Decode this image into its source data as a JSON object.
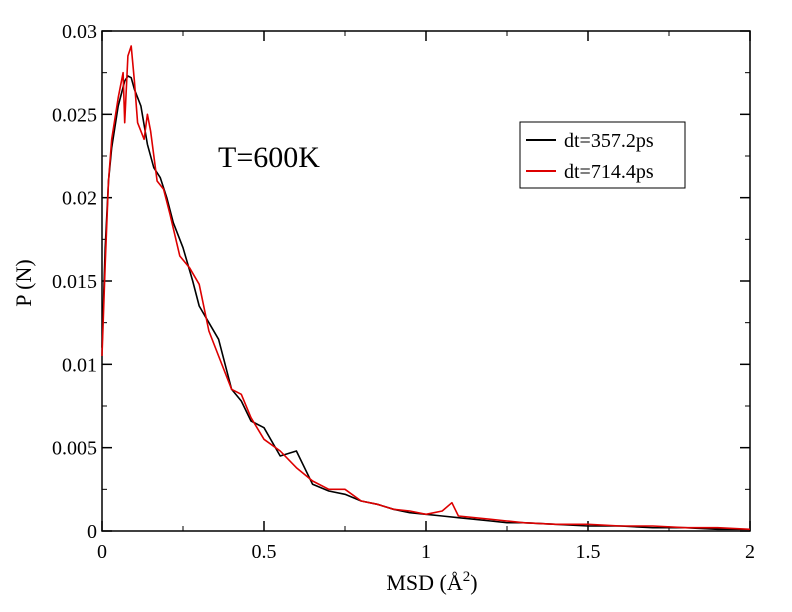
{
  "chart_data": {
    "type": "line",
    "annotation": "T=600K",
    "xlabel": "MSD (Å",
    "xlabel_superscript": "2",
    "xlabel_suffix": ")",
    "ylabel": "P (N)",
    "xlim": [
      0,
      2
    ],
    "ylim": [
      0,
      0.03
    ],
    "xticks": [
      0,
      0.5,
      1,
      1.5,
      2
    ],
    "xtick_labels": [
      "0",
      "0.5",
      "1",
      "1.5",
      "2"
    ],
    "yticks": [
      0,
      0.005,
      0.01,
      0.015,
      0.02,
      0.025,
      0.03
    ],
    "ytick_labels": [
      "0",
      "0.005",
      "0.01",
      "0.015",
      "0.02",
      "0.025",
      "0.03"
    ],
    "grid": false,
    "legend_position": "top-right",
    "series": [
      {
        "name": "dt=357.2ps",
        "color": "#000000",
        "x": [
          0.0,
          0.01,
          0.02,
          0.03,
          0.05,
          0.07,
          0.08,
          0.09,
          0.1,
          0.12,
          0.14,
          0.16,
          0.18,
          0.2,
          0.22,
          0.25,
          0.28,
          0.3,
          0.33,
          0.36,
          0.4,
          0.43,
          0.46,
          0.5,
          0.55,
          0.6,
          0.65,
          0.7,
          0.75,
          0.8,
          0.85,
          0.9,
          0.95,
          1.0,
          1.05,
          1.1,
          1.15,
          1.2,
          1.25,
          1.3,
          1.4,
          1.5,
          1.6,
          1.7,
          1.8,
          1.9,
          2.0
        ],
        "y": [
          0.011,
          0.017,
          0.021,
          0.023,
          0.0255,
          0.027,
          0.0273,
          0.0272,
          0.0265,
          0.0255,
          0.0232,
          0.0218,
          0.0212,
          0.02,
          0.0185,
          0.017,
          0.015,
          0.0135,
          0.0125,
          0.0115,
          0.0085,
          0.0078,
          0.0066,
          0.0062,
          0.0045,
          0.0048,
          0.0028,
          0.0024,
          0.0022,
          0.0018,
          0.0016,
          0.0013,
          0.0011,
          0.001,
          0.0009,
          0.0008,
          0.0007,
          0.0006,
          0.0005,
          0.0005,
          0.0004,
          0.0003,
          0.0003,
          0.0002,
          0.0002,
          0.0001,
          0.0001
        ]
      },
      {
        "name": "dt=714.4ps",
        "color": "#dd0000",
        "x": [
          0.0,
          0.01,
          0.02,
          0.03,
          0.05,
          0.065,
          0.07,
          0.08,
          0.09,
          0.1,
          0.11,
          0.13,
          0.14,
          0.15,
          0.17,
          0.19,
          0.21,
          0.24,
          0.27,
          0.3,
          0.33,
          0.36,
          0.4,
          0.43,
          0.46,
          0.5,
          0.55,
          0.6,
          0.65,
          0.7,
          0.75,
          0.8,
          0.85,
          0.9,
          0.95,
          1.0,
          1.05,
          1.08,
          1.1,
          1.15,
          1.2,
          1.25,
          1.3,
          1.4,
          1.5,
          1.6,
          1.7,
          1.8,
          1.9,
          2.0
        ],
        "y": [
          0.0105,
          0.016,
          0.021,
          0.0235,
          0.026,
          0.0275,
          0.0245,
          0.0285,
          0.0291,
          0.027,
          0.0245,
          0.0235,
          0.025,
          0.024,
          0.021,
          0.0205,
          0.019,
          0.0165,
          0.0158,
          0.0148,
          0.012,
          0.0105,
          0.0085,
          0.0082,
          0.0068,
          0.0055,
          0.0048,
          0.0038,
          0.003,
          0.0025,
          0.0025,
          0.0018,
          0.0016,
          0.0013,
          0.0012,
          0.001,
          0.0012,
          0.0017,
          0.0009,
          0.0008,
          0.0007,
          0.0006,
          0.0005,
          0.0004,
          0.0004,
          0.0003,
          0.0003,
          0.0002,
          0.0002,
          0.0001
        ]
      }
    ]
  }
}
